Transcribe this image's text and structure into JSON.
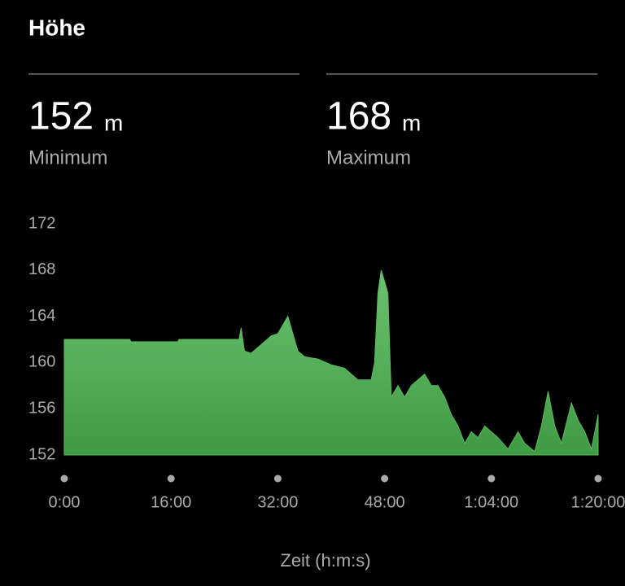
{
  "header": {
    "title": "Höhe"
  },
  "stats": [
    {
      "value": 152,
      "unit": "m",
      "label": "Minimum"
    },
    {
      "value": 168,
      "unit": "m",
      "label": "Maximum"
    }
  ],
  "chart_data": {
    "type": "area",
    "color": "#5cb85f",
    "x": [
      0,
      9.8,
      10,
      17,
      17.2,
      26.2,
      26.5,
      27,
      28,
      29,
      30,
      31,
      32,
      33,
      33.5,
      34,
      35,
      36,
      38,
      40,
      42,
      44,
      46,
      46.5,
      47,
      47.5,
      48.5,
      49,
      49.5,
      50,
      51,
      52,
      53,
      54,
      55,
      56,
      57,
      58,
      59,
      60,
      61,
      62,
      63,
      64,
      65,
      66.5,
      68,
      69,
      70.5,
      71.5,
      72.5,
      73.5,
      74.5,
      76,
      77,
      78,
      79,
      80
    ],
    "values": [
      162,
      162,
      161.8,
      161.8,
      162,
      162,
      163,
      161,
      160.8,
      161.3,
      161.8,
      162.3,
      162.5,
      163.5,
      164,
      163,
      161,
      160.5,
      160.3,
      159.8,
      159.5,
      158.5,
      158.5,
      160,
      166,
      168,
      166,
      157,
      157.5,
      158,
      157,
      158,
      158.5,
      159,
      158,
      158,
      157,
      155.5,
      154.5,
      153,
      154,
      153.5,
      154.5,
      154,
      153.5,
      152.5,
      154,
      153,
      152.3,
      154.5,
      157.5,
      154.5,
      153,
      156.5,
      155,
      154,
      152.5,
      155.5
    ],
    "xlim": [
      0,
      80
    ],
    "xticks": [
      {
        "value": 0,
        "label": "0:00"
      },
      {
        "value": 16,
        "label": "16:00"
      },
      {
        "value": 32,
        "label": "32:00"
      },
      {
        "value": 48,
        "label": "48:00"
      },
      {
        "value": 64,
        "label": "1:04:00"
      },
      {
        "value": 80,
        "label": "1:20:00"
      }
    ],
    "ylim": [
      152,
      172
    ],
    "yticks": [
      152,
      156,
      160,
      164,
      168,
      172
    ],
    "xlabel": "Zeit (h:m:s)"
  }
}
